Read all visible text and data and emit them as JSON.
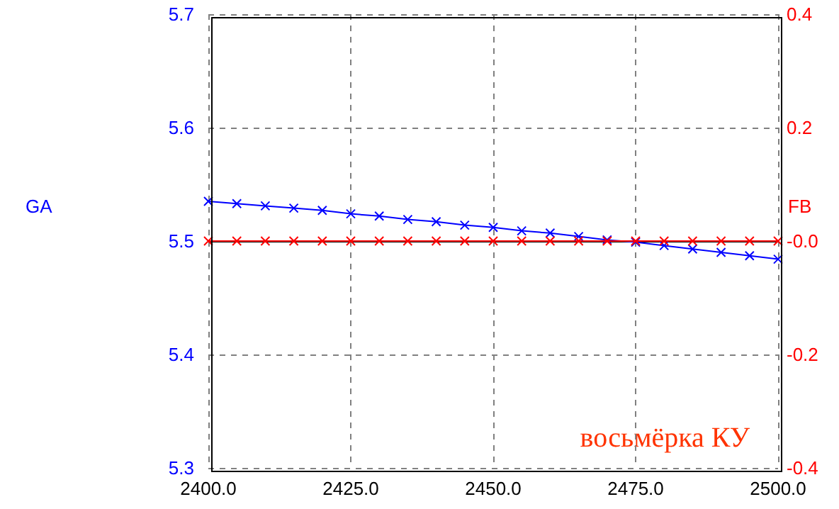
{
  "chart_data": {
    "type": "line",
    "x": [
      2400,
      2405,
      2410,
      2415,
      2420,
      2425,
      2430,
      2435,
      2440,
      2445,
      2450,
      2455,
      2460,
      2465,
      2470,
      2475,
      2480,
      2485,
      2490,
      2495,
      2500
    ],
    "series": [
      {
        "name": "GA",
        "color": "#0000ff",
        "values": [
          5.535,
          5.533,
          5.531,
          5.529,
          5.527,
          5.524,
          5.522,
          5.519,
          5.517,
          5.514,
          5.512,
          5.509,
          5.507,
          5.504,
          5.501,
          5.499,
          5.496,
          5.493,
          5.49,
          5.487,
          5.484
        ]
      },
      {
        "name": "FB",
        "color": "#ff0000",
        "axis": "y2",
        "values": [
          0,
          0,
          0,
          0,
          0,
          0,
          0,
          0,
          0,
          0,
          0,
          0,
          0,
          0,
          0,
          0,
          0,
          0,
          0,
          0,
          0
        ]
      }
    ],
    "xlim": [
      2400,
      2500
    ],
    "xticks": [
      {
        "value": 2400,
        "label": "2400.0"
      },
      {
        "value": 2425,
        "label": "2425.0"
      },
      {
        "value": 2450,
        "label": "2450.0"
      },
      {
        "value": 2475,
        "label": "2475.0"
      },
      {
        "value": 2500,
        "label": "2500.0"
      }
    ],
    "ylim": [
      5.3,
      5.7
    ],
    "yticks": [
      5.3,
      5.4,
      5.5,
      5.6,
      5.7
    ],
    "y2lim": [
      -0.4,
      0.4
    ],
    "y2ticks": [
      -0.4,
      -0.2,
      {
        "value": 0,
        "label": "-0.0"
      },
      0.2,
      0.4
    ],
    "annotations": [
      "восьмёрка КУ"
    ],
    "grid": true,
    "marker": "cross",
    "line_style": "solid",
    "legend": false
  }
}
